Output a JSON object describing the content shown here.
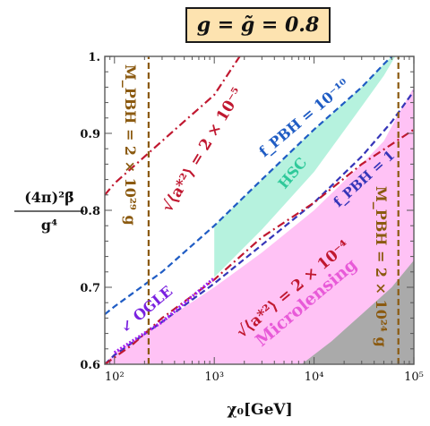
{
  "title": "g = g̃ = 0.8",
  "chart_data": {
    "type": "line",
    "xlabel": "χ₀[GeV]",
    "ylabel_num": "(4π)²β̄",
    "ylabel_den": "g⁴",
    "x_scale": "log",
    "xlim": [
      80,
      100000
    ],
    "ylim": [
      0.6,
      1.0
    ],
    "x_ticks": [
      {
        "value": 100,
        "label": "10²"
      },
      {
        "value": 1000,
        "label": "10³"
      },
      {
        "value": 10000,
        "label": "10⁴"
      },
      {
        "value": 100000,
        "label": "10⁵"
      }
    ],
    "y_ticks": [
      {
        "value": 0.6,
        "label": "0.6"
      },
      {
        "value": 0.7,
        "label": "0.7"
      },
      {
        "value": 0.8,
        "label": "0.8"
      },
      {
        "value": 0.9,
        "label": "0.9"
      },
      {
        "value": 1.0,
        "label": "1."
      }
    ],
    "regions": [
      {
        "name": "Microlensing",
        "color": "#ffc2f5",
        "boundary": [
          [
            80,
            0.6
          ],
          [
            100,
            0.615
          ],
          [
            300,
            0.655
          ],
          [
            1000,
            0.7
          ],
          [
            3000,
            0.745
          ],
          [
            10000,
            0.8
          ],
          [
            30000,
            0.86
          ],
          [
            50000,
            0.89
          ],
          [
            70000,
            0.925
          ],
          [
            100000,
            0.96
          ]
        ]
      },
      {
        "name": "HSC",
        "color": "#b6f2de",
        "boundary": [
          [
            1000,
            0.713
          ],
          [
            3000,
            0.775
          ],
          [
            10000,
            0.85
          ],
          [
            30000,
            0.935
          ],
          [
            50000,
            0.975
          ],
          [
            65000,
            1.0
          ]
        ]
      },
      {
        "name": "gray",
        "color": "#aaaaaa",
        "boundary": [
          [
            7500,
            0.6
          ],
          [
            15000,
            0.63
          ],
          [
            30000,
            0.665
          ],
          [
            60000,
            0.7
          ],
          [
            100000,
            0.735
          ]
        ]
      }
    ],
    "series": [
      {
        "label": "f_PBH = 10⁻¹⁰",
        "color": "#1f5cc4",
        "style": "dashed",
        "points": [
          [
            80,
            0.665
          ],
          [
            100,
            0.675
          ],
          [
            300,
            0.72
          ],
          [
            1000,
            0.78
          ],
          [
            3000,
            0.84
          ],
          [
            10000,
            0.905
          ],
          [
            30000,
            0.96
          ],
          [
            50000,
            0.99
          ],
          [
            60000,
            1.0
          ]
        ]
      },
      {
        "label": "f_PBH = 1",
        "color": "#3535b8",
        "style": "dashed",
        "points": [
          [
            80,
            0.6
          ],
          [
            100,
            0.612
          ],
          [
            300,
            0.655
          ],
          [
            1000,
            0.705
          ],
          [
            3000,
            0.755
          ],
          [
            10000,
            0.81
          ],
          [
            30000,
            0.87
          ],
          [
            60000,
            0.915
          ],
          [
            100000,
            0.955
          ]
        ]
      },
      {
        "label": "√⟨a*²⟩ = 2 × 10⁻⁵",
        "color": "#c01830",
        "style": "dashdot",
        "points": [
          [
            80,
            0.82
          ],
          [
            100,
            0.835
          ],
          [
            300,
            0.89
          ],
          [
            1000,
            0.95
          ],
          [
            1800,
            1.0
          ]
        ]
      },
      {
        "label": "√⟨a*²⟩ = 2 × 10⁻⁴",
        "color": "#c01830",
        "style": "dashdot",
        "points": [
          [
            80,
            0.6
          ],
          [
            150,
            0.625
          ],
          [
            300,
            0.66
          ],
          [
            1000,
            0.71
          ],
          [
            3000,
            0.765
          ],
          [
            10000,
            0.81
          ],
          [
            30000,
            0.86
          ],
          [
            100000,
            0.905
          ]
        ]
      },
      {
        "label": "OGLE",
        "color": "#a020f0",
        "style": "dotted",
        "points": [
          [
            100,
            0.615
          ],
          [
            300,
            0.655
          ],
          [
            1000,
            0.712
          ]
        ]
      },
      {
        "label": "M_PBH = 2 × 10²⁹ g",
        "color": "#8b5a10",
        "style": "dashed",
        "points": [
          [
            220,
            0.6
          ],
          [
            220,
            1.0
          ]
        ]
      },
      {
        "label": "M_PBH = 2 × 10²⁴ g",
        "color": "#8b5a10",
        "style": "dashed",
        "points": [
          [
            70000,
            0.6
          ],
          [
            70000,
            1.0
          ]
        ]
      }
    ],
    "annotations": [
      {
        "text": "M_PBH = 2 × 10²⁹ g",
        "color": "#8b5a10"
      },
      {
        "text": "√⟨a*²⟩ = 2 × 10⁻⁵",
        "color": "#c01830"
      },
      {
        "text": "f_PBH = 10⁻¹⁰",
        "color": "#1f5cc4"
      },
      {
        "text": "HSC",
        "color": "#2ec99a"
      },
      {
        "text": "f_PBH = 1",
        "color": "#3535b8"
      },
      {
        "text": "M_PBH = 2 × 10²⁴ g",
        "color": "#8b5a10"
      },
      {
        "text": "√⟨a*²⟩ = 2 × 10⁻⁴",
        "color": "#c01830"
      },
      {
        "text": "Microlensing",
        "color": "#e85ad8"
      },
      {
        "text": "↙ OGLE",
        "color": "#7a22e0"
      }
    ]
  }
}
